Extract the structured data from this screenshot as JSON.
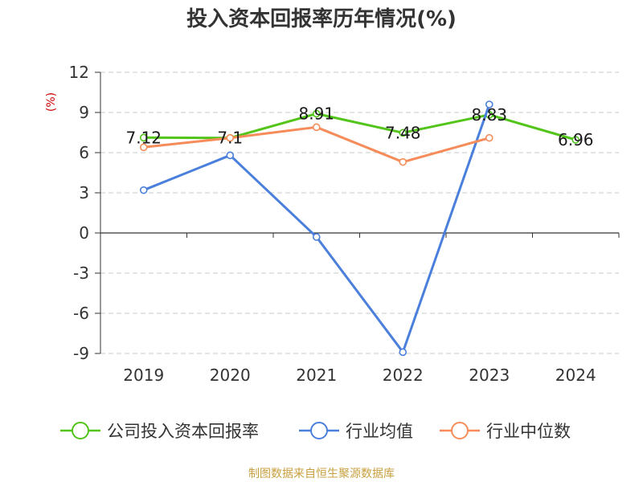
{
  "chart_data": {
    "type": "line",
    "title": "投入资本回报率历年情况(%)",
    "ylabel": "(%)",
    "xlabel": "",
    "categories": [
      "2019",
      "2020",
      "2021",
      "2022",
      "2023",
      "2024"
    ],
    "ylim": [
      -9,
      12
    ],
    "yticks": [
      12,
      9,
      6,
      3,
      0,
      -3,
      -6,
      -9
    ],
    "grid": true,
    "legend_position": "bottom",
    "series": [
      {
        "name": "公司投入资本回报率",
        "color": "#52c41a",
        "values": [
          7.12,
          7.1,
          8.91,
          7.48,
          8.83,
          6.96
        ],
        "labels": [
          "7.12",
          "7.1",
          "8.91",
          "7.48",
          "8.83",
          "6.96"
        ]
      },
      {
        "name": "行业均值",
        "color": "#4a7fdc",
        "values": [
          3.2,
          5.8,
          -0.3,
          -8.9,
          9.6,
          null
        ]
      },
      {
        "name": "行业中位数",
        "color": "#f58c5a",
        "values": [
          6.4,
          7.1,
          7.9,
          5.3,
          7.1,
          null
        ]
      }
    ]
  },
  "footer": {
    "source": "制图数据来自恒生聚源数据库",
    "color": "#c8a040"
  }
}
